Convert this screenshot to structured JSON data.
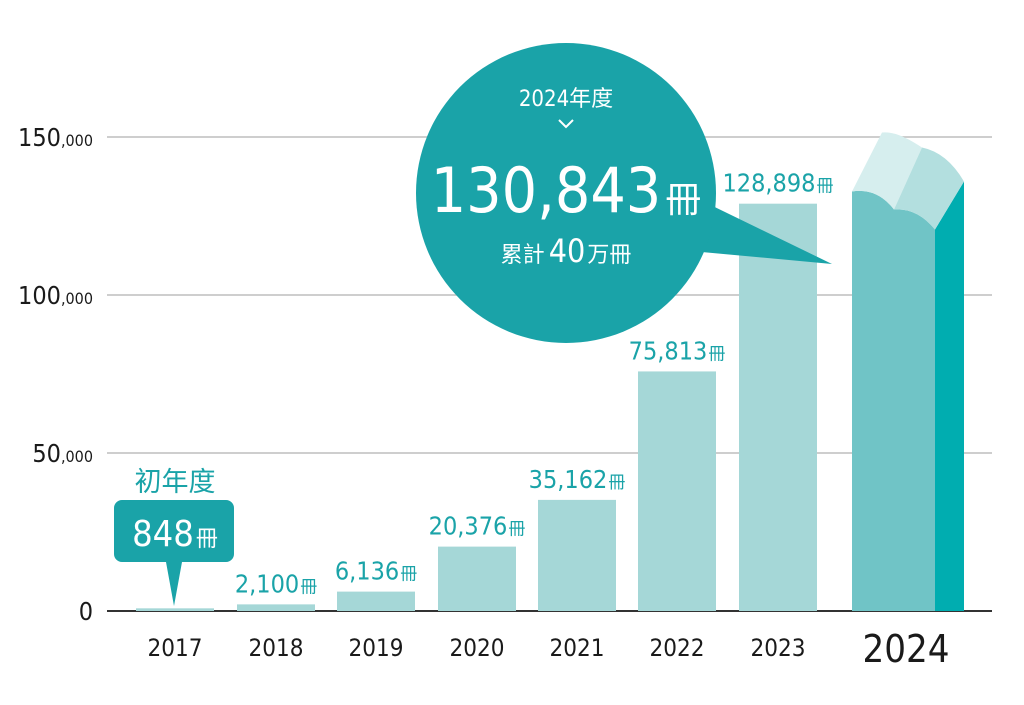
{
  "chart_data": {
    "type": "bar",
    "title": "",
    "xlabel": "",
    "ylabel": "",
    "ylim": [
      0,
      150000
    ],
    "grid": true,
    "categories": [
      "2017",
      "2018",
      "2019",
      "2020",
      "2021",
      "2022",
      "2023",
      "2024"
    ],
    "values": [
      848,
      2100,
      6136,
      20376,
      35162,
      75813,
      128898,
      130843
    ],
    "value_labels": [
      "848",
      "2,100",
      "6,136",
      "20,376",
      "35,162",
      "75,813",
      "128,898",
      "130,843"
    ],
    "unit": "冊",
    "y_ticks": [
      {
        "value": 0,
        "main": "0",
        "suffix": ""
      },
      {
        "value": 50000,
        "main": "50",
        "suffix": ",000"
      },
      {
        "value": 100000,
        "main": "100",
        "suffix": ",000"
      },
      {
        "value": 150000,
        "main": "150",
        "suffix": ",000"
      }
    ],
    "highlight_index": 7,
    "annotations": {
      "first_year": {
        "heading": "初年度",
        "value": "848",
        "unit": "冊"
      },
      "callout": {
        "year_label": "2024年度",
        "value": "130,843",
        "unit": "冊",
        "cumulative_prefix": "累計",
        "cumulative_value": "40",
        "cumulative_suffix": "万冊"
      }
    }
  },
  "colors": {
    "accent": "#1aa3a8",
    "bar": "#a5d7d7",
    "highlight_front": "#70c4c6",
    "highlight_side": "#00adb0",
    "book_left": "#d6eeee",
    "book_right": "#b3dfdf",
    "grid": "#bdbdbd",
    "axis": "#333333"
  }
}
